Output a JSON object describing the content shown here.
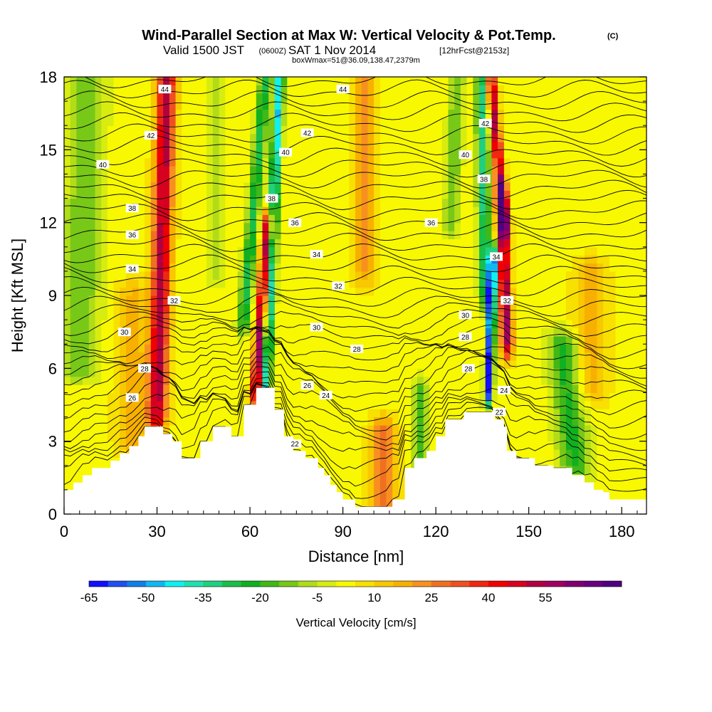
{
  "chart_data": {
    "type": "heatmap",
    "title": "Wind-Parallel Section at Max W: Vertical Velocity & Pot.Temp.",
    "title_mark": "(C)",
    "subtitle_valid": "Valid 1500 JST",
    "subtitle_utc": "(0600Z)",
    "subtitle_date": "SAT 1 Nov 2014",
    "subtitle_fcst": "[12hrFcst@2153z]",
    "subtitle2": "boxWmax=51@36.09,138.47,2379m",
    "xlabel": "Distance [nm]",
    "ylabel": "Height [Kft MSL]",
    "xlim": [
      0,
      188
    ],
    "ylim": [
      0,
      18
    ],
    "x_ticks": [
      0,
      30,
      60,
      90,
      120,
      150,
      180
    ],
    "y_ticks": [
      0,
      3,
      6,
      9,
      12,
      15,
      18
    ],
    "colorbar": {
      "label": "Vertical Velocity [cm/s]",
      "tick_labels": [
        "-65",
        "-50",
        "-35",
        "-20",
        "-5",
        "10",
        "25",
        "40",
        "55"
      ],
      "levels_start": -65,
      "level_step": 5,
      "colors": [
        "#1010ff",
        "#2050f0",
        "#1080e8",
        "#10b8f0",
        "#10f0f0",
        "#20e0b0",
        "#20d080",
        "#18c048",
        "#10b020",
        "#40b818",
        "#78c818",
        "#b0dc18",
        "#d8ec10",
        "#f8f800",
        "#f8e000",
        "#f8c800",
        "#f8b000",
        "#f89020",
        "#f07020",
        "#f05020",
        "#f02810",
        "#f00000",
        "#d80020",
        "#b00040",
        "#a00060",
        "#800070",
        "#680080",
        "#500080"
      ]
    },
    "contour_labels": [
      {
        "value": "44",
        "x": 32.5,
        "y": 17.5
      },
      {
        "value": "44",
        "x": 90.0,
        "y": 17.5
      },
      {
        "value": "42",
        "x": 28.0,
        "y": 15.6
      },
      {
        "value": "42",
        "x": 78.5,
        "y": 15.7
      },
      {
        "value": "42",
        "x": 136.0,
        "y": 16.1
      },
      {
        "value": "40",
        "x": 12.5,
        "y": 14.4
      },
      {
        "value": "40",
        "x": 71.5,
        "y": 14.9
      },
      {
        "value": "40",
        "x": 129.5,
        "y": 14.8
      },
      {
        "value": "38",
        "x": 67.0,
        "y": 13.0
      },
      {
        "value": "38",
        "x": 135.5,
        "y": 13.8
      },
      {
        "value": "38",
        "x": 22.0,
        "y": 12.6
      },
      {
        "value": "36",
        "x": 74.5,
        "y": 12.0
      },
      {
        "value": "36",
        "x": 118.5,
        "y": 12.0
      },
      {
        "value": "36",
        "x": 22.0,
        "y": 11.5
      },
      {
        "value": "34",
        "x": 81.5,
        "y": 10.7
      },
      {
        "value": "34",
        "x": 139.5,
        "y": 10.6
      },
      {
        "value": "34",
        "x": 22.0,
        "y": 10.1
      },
      {
        "value": "32",
        "x": 88.5,
        "y": 9.4
      },
      {
        "value": "32",
        "x": 35.5,
        "y": 8.8
      },
      {
        "value": "32",
        "x": 143.0,
        "y": 8.8
      },
      {
        "value": "30",
        "x": 129.5,
        "y": 8.2
      },
      {
        "value": "30",
        "x": 81.5,
        "y": 7.7
      },
      {
        "value": "30",
        "x": 19.5,
        "y": 7.5
      },
      {
        "value": "28",
        "x": 129.5,
        "y": 7.3
      },
      {
        "value": "28",
        "x": 94.5,
        "y": 6.8
      },
      {
        "value": "28",
        "x": 130.5,
        "y": 6.0
      },
      {
        "value": "28",
        "x": 26.0,
        "y": 6.0
      },
      {
        "value": "26",
        "x": 78.5,
        "y": 5.3
      },
      {
        "value": "26",
        "x": 22.0,
        "y": 4.8
      },
      {
        "value": "24",
        "x": 84.5,
        "y": 4.9
      },
      {
        "value": "24",
        "x": 142.0,
        "y": 5.1
      },
      {
        "value": "22",
        "x": 140.5,
        "y": 4.2
      },
      {
        "value": "22",
        "x": 74.5,
        "y": 2.9
      }
    ]
  }
}
